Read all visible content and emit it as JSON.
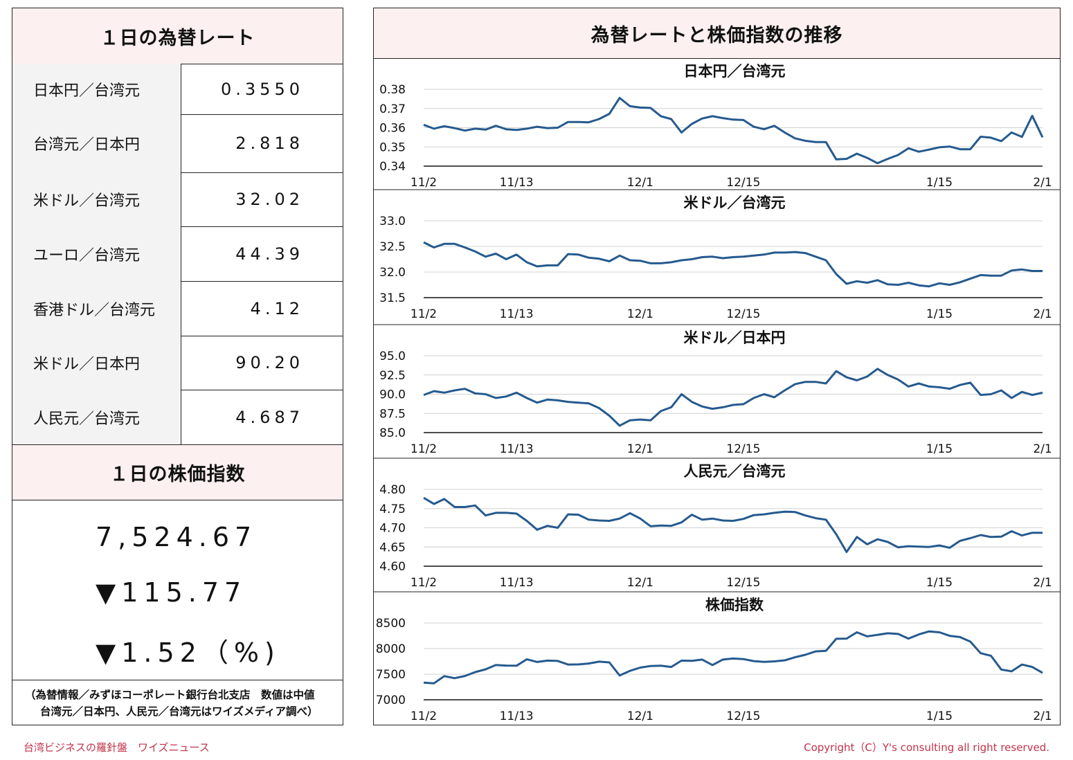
{
  "left": {
    "rates_title": "１日の為替レート",
    "rates": [
      {
        "label": "日本円／台湾元",
        "value": "0.3550"
      },
      {
        "label": "台湾元／日本円",
        "value": "2.818"
      },
      {
        "label": "米ドル／台湾元",
        "value": "32.02"
      },
      {
        "label": "ユーロ／台湾元",
        "value": "44.39"
      },
      {
        "label": "香港ドル／台湾元",
        "value": "4.12"
      },
      {
        "label": "米ドル／日本円",
        "value": "90.20"
      },
      {
        "label": "人民元／台湾元",
        "value": "4.687"
      }
    ],
    "stock_title": "１日の株価指数",
    "stock_value": "7,524.67",
    "stock_change": "▼115.77",
    "stock_change_pct": "▼1.52（%)",
    "note_line1": "（為替情報／みずほコーポレート銀行台北支店　数値は中値",
    "note_line2": "台湾元／日本円、人民元／台湾元はワイズメディア調べ）"
  },
  "right": {
    "title": "為替レートと株価指数の推移"
  },
  "footer": {
    "left": "台湾ビジネスの羅針盤　ワイズニュース",
    "right": "Copyright（C）Y's consulting all right reserved."
  },
  "colors": {
    "line": "#255a8e",
    "header_bg": "#fdf0f0",
    "label_bg": "#f3f3f3",
    "footer": "#c0334a"
  },
  "chart_data": [
    {
      "type": "line",
      "title": "日本円／台湾元",
      "x_ticks": [
        "11/2",
        "11/13",
        "12/1",
        "12/15",
        "1/15",
        "2/1"
      ],
      "y_ticks": [
        "0.38",
        "0.37",
        "0.36",
        "0.35",
        "0.34"
      ],
      "ylim": [
        0.34,
        0.38
      ],
      "values": [
        0.3615,
        0.3595,
        0.3608,
        0.3598,
        0.3585,
        0.3595,
        0.359,
        0.361,
        0.3592,
        0.3588,
        0.3595,
        0.3605,
        0.3598,
        0.36,
        0.363,
        0.363,
        0.3628,
        0.3645,
        0.3672,
        0.3755,
        0.3712,
        0.3705,
        0.3703,
        0.366,
        0.3645,
        0.3575,
        0.362,
        0.3648,
        0.366,
        0.365,
        0.3642,
        0.364,
        0.3605,
        0.3592,
        0.361,
        0.3575,
        0.3545,
        0.3532,
        0.3525,
        0.3525,
        0.3435,
        0.3438,
        0.3465,
        0.3443,
        0.3415,
        0.3438,
        0.3458,
        0.3493,
        0.3475,
        0.3486,
        0.3498,
        0.3502,
        0.3488,
        0.3488,
        0.3553,
        0.3548,
        0.353,
        0.3575,
        0.3552,
        0.3662,
        0.355
      ]
    },
    {
      "type": "line",
      "title": "米ドル／台湾元",
      "x_ticks": [
        "11/2",
        "11/13",
        "12/1",
        "12/15",
        "1/15",
        "2/1"
      ],
      "y_ticks": [
        "33.0",
        "32.5",
        "32.0",
        "31.5"
      ],
      "ylim": [
        31.5,
        33.0
      ],
      "values": [
        32.58,
        32.48,
        32.55,
        32.55,
        32.48,
        32.4,
        32.3,
        32.36,
        32.25,
        32.34,
        32.19,
        32.11,
        32.13,
        32.13,
        32.35,
        32.34,
        32.28,
        32.26,
        32.21,
        32.32,
        32.23,
        32.22,
        32.17,
        32.17,
        32.19,
        32.23,
        32.25,
        32.29,
        32.3,
        32.27,
        32.29,
        32.3,
        32.32,
        32.34,
        32.38,
        32.38,
        32.39,
        32.37,
        32.3,
        32.23,
        31.96,
        31.77,
        31.82,
        31.79,
        31.84,
        31.76,
        31.75,
        31.79,
        31.74,
        31.72,
        31.78,
        31.75,
        31.8,
        31.87,
        31.94,
        31.93,
        31.93,
        32.03,
        32.05,
        32.02,
        32.02
      ]
    },
    {
      "type": "line",
      "title": "米ドル／日本円",
      "x_ticks": [
        "11/2",
        "11/13",
        "12/1",
        "12/15",
        "1/15",
        "2/1"
      ],
      "y_ticks": [
        "95.0",
        "92.5",
        "90.0",
        "87.5",
        "85.0"
      ],
      "ylim": [
        85.0,
        95.0
      ],
      "values": [
        89.9,
        90.4,
        90.2,
        90.5,
        90.7,
        90.1,
        90.0,
        89.5,
        89.7,
        90.2,
        89.5,
        88.9,
        89.3,
        89.2,
        89.0,
        88.9,
        88.8,
        88.2,
        87.2,
        85.9,
        86.6,
        86.7,
        86.6,
        87.8,
        88.3,
        90.0,
        89.0,
        88.4,
        88.1,
        88.3,
        88.6,
        88.7,
        89.5,
        90.0,
        89.6,
        90.5,
        91.3,
        91.6,
        91.6,
        91.4,
        93.0,
        92.2,
        91.8,
        92.3,
        93.3,
        92.5,
        91.9,
        91.0,
        91.4,
        91.0,
        90.9,
        90.7,
        91.2,
        91.5,
        89.9,
        90.0,
        90.5,
        89.5,
        90.3,
        89.9,
        90.2
      ]
    },
    {
      "type": "line",
      "title": "人民元／台湾元",
      "x_ticks": [
        "11/2",
        "11/13",
        "12/1",
        "12/15",
        "1/15",
        "2/1"
      ],
      "y_ticks": [
        "4.80",
        "4.75",
        "4.70",
        "4.65",
        "4.60"
      ],
      "ylim": [
        4.6,
        4.8
      ],
      "values": [
        4.778,
        4.762,
        4.775,
        4.754,
        4.754,
        4.758,
        4.732,
        4.739,
        4.739,
        4.737,
        4.718,
        4.695,
        4.705,
        4.7,
        4.735,
        4.734,
        4.721,
        4.719,
        4.718,
        4.724,
        4.738,
        4.724,
        4.704,
        4.706,
        4.705,
        4.714,
        4.734,
        4.721,
        4.724,
        4.719,
        4.718,
        4.723,
        4.733,
        4.735,
        4.739,
        4.742,
        4.741,
        4.732,
        4.725,
        4.721,
        4.683,
        4.637,
        4.676,
        4.657,
        4.67,
        4.663,
        4.649,
        4.652,
        4.651,
        4.65,
        4.654,
        4.648,
        4.666,
        4.673,
        4.681,
        4.676,
        4.677,
        4.691,
        4.68,
        4.687,
        4.687
      ]
    },
    {
      "type": "line",
      "title": "株価指数",
      "x_ticks": [
        "11/2",
        "11/13",
        "12/1",
        "12/15",
        "1/15",
        "2/1"
      ],
      "y_ticks": [
        "8500",
        "8000",
        "7500",
        "7000"
      ],
      "ylim": [
        7000,
        8500
      ],
      "values": [
        7335,
        7322,
        7462,
        7422,
        7465,
        7540,
        7595,
        7680,
        7668,
        7665,
        7790,
        7738,
        7765,
        7758,
        7688,
        7690,
        7708,
        7745,
        7730,
        7475,
        7565,
        7628,
        7660,
        7665,
        7640,
        7765,
        7760,
        7785,
        7678,
        7785,
        7805,
        7795,
        7755,
        7740,
        7750,
        7770,
        7830,
        7878,
        7945,
        7955,
        8190,
        8195,
        8318,
        8238,
        8268,
        8298,
        8285,
        8195,
        8275,
        8335,
        8318,
        8248,
        8225,
        8135,
        7910,
        7860,
        7590,
        7555,
        7688,
        7640,
        7525
      ]
    }
  ]
}
